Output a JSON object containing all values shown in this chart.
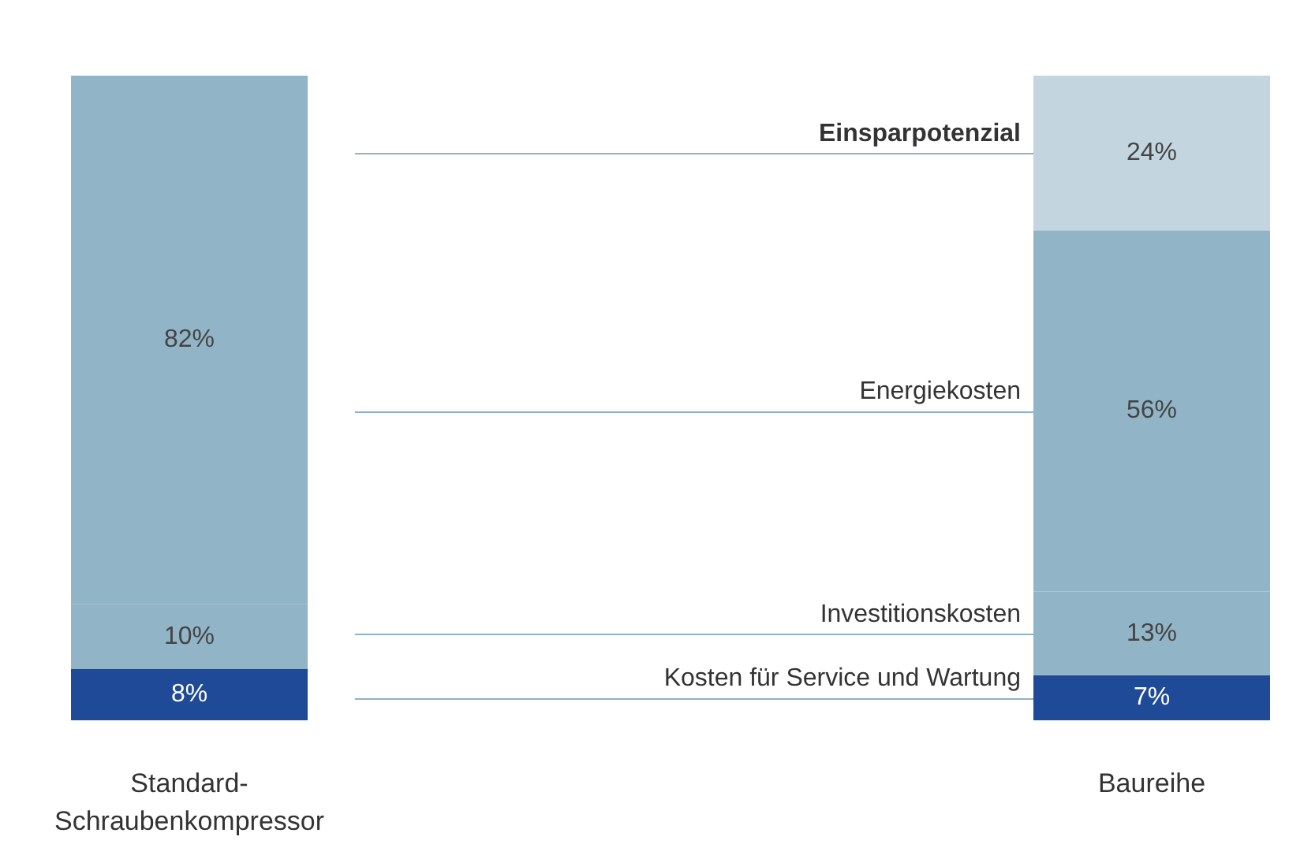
{
  "chart_data": {
    "type": "bar",
    "stacked": true,
    "categories": [
      "Standard-Schraubenkompressor",
      "Baureihe"
    ],
    "tick_labels": "x",
    "legend": false,
    "series": [
      {
        "name": "Kosten für Service und Wartung",
        "color": "#1f4a97",
        "values": [
          8,
          7
        ],
        "value_labels": [
          "8%",
          "7%"
        ]
      },
      {
        "name": "Investitionskosten",
        "color": "#92b4c7",
        "values": [
          10,
          13
        ],
        "value_labels": [
          "10%",
          "13%"
        ]
      },
      {
        "name": "Energiekosten",
        "color": "#92b4c7",
        "values": [
          82,
          56
        ],
        "value_labels": [
          "82%",
          "56%"
        ]
      },
      {
        "name": "Einsparpotenzial",
        "color": "#c3d5df",
        "values": [
          null,
          24
        ],
        "value_labels": [
          null,
          "24%"
        ]
      }
    ]
  }
}
